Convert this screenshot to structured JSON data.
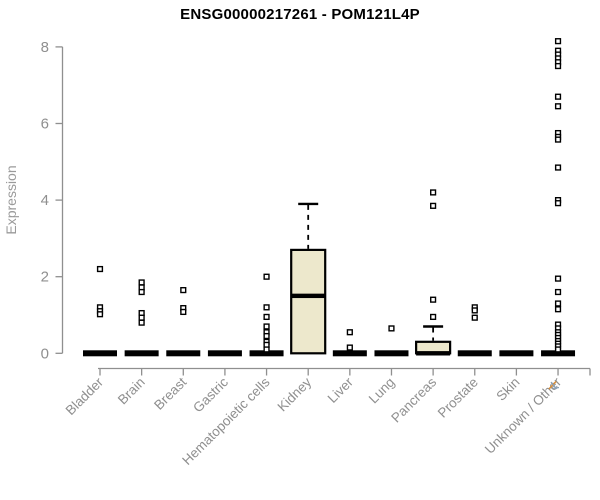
{
  "chart_data": {
    "type": "boxplot",
    "title": "ENSG00000217261 - POM121L4P",
    "ylabel": "Expression",
    "ylim": [
      0,
      8.4
    ],
    "yticks": [
      0,
      2,
      4,
      6,
      8
    ],
    "grid": false,
    "legend": null,
    "colors": {
      "box_fill": "#ede8cc",
      "box_stroke": "#000000",
      "axis": "#8f8f8f",
      "tick_label": "#8f8f8f",
      "axis_title": "#9a9a9a",
      "title": "#000000",
      "outlier_fill": "#ffffff"
    },
    "categories": [
      "Bladder",
      "Brain",
      "Breast",
      "Gastric",
      "Hematopoietic cells",
      "Kidney",
      "Liver",
      "Lung",
      "Pancreas",
      "Prostate",
      "Skin",
      "Unknown / Other"
    ],
    "series": [
      {
        "category": "Bladder",
        "q1": 0,
        "median": 0,
        "q3": 0,
        "whisker_low": 0,
        "whisker_high": 0,
        "outliers": [
          2.2,
          1.2,
          1.1,
          1.02
        ]
      },
      {
        "category": "Brain",
        "q1": 0,
        "median": 0,
        "q3": 0,
        "whisker_low": 0,
        "whisker_high": 0,
        "outliers": [
          1.85,
          1.72,
          1.6,
          1.05,
          0.93,
          0.8
        ]
      },
      {
        "category": "Breast",
        "q1": 0,
        "median": 0,
        "q3": 0,
        "whisker_low": 0,
        "whisker_high": 0,
        "outliers": [
          1.65,
          1.18,
          1.08
        ]
      },
      {
        "category": "Gastric",
        "q1": 0,
        "median": 0,
        "q3": 0,
        "whisker_low": 0,
        "whisker_high": 0,
        "outliers": []
      },
      {
        "category": "Hematopoietic cells",
        "q1": 0,
        "median": 0,
        "q3": 0,
        "whisker_low": 0,
        "whisker_high": 0,
        "outliers": [
          2.0,
          1.2,
          0.95,
          0.7,
          0.55,
          0.45,
          0.3,
          0.22,
          0.1
        ]
      },
      {
        "category": "Kidney",
        "q1": 0,
        "median": 1.5,
        "q3": 2.7,
        "whisker_low": 0,
        "whisker_high": 3.9,
        "outliers": []
      },
      {
        "category": "Liver",
        "q1": 0,
        "median": 0,
        "q3": 0,
        "whisker_low": 0,
        "whisker_high": 0,
        "outliers": [
          0.55,
          0.15
        ]
      },
      {
        "category": "Lung",
        "q1": 0,
        "median": 0,
        "q3": 0,
        "whisker_low": 0,
        "whisker_high": 0,
        "outliers": [
          0.65
        ]
      },
      {
        "category": "Pancreas",
        "q1": 0,
        "median": 0,
        "q3": 0.3,
        "whisker_low": 0,
        "whisker_high": 0.7,
        "outliers": [
          4.2,
          3.85,
          1.4,
          0.95
        ]
      },
      {
        "category": "Prostate",
        "q1": 0,
        "median": 0,
        "q3": 0,
        "whisker_low": 0,
        "whisker_high": 0,
        "outliers": [
          1.2,
          1.12,
          0.93
        ]
      },
      {
        "category": "Skin",
        "q1": 0,
        "median": 0,
        "q3": 0,
        "whisker_low": 0,
        "whisker_high": 0,
        "outliers": []
      },
      {
        "category": "Unknown / Other",
        "q1": 0,
        "median": 0,
        "q3": 0,
        "whisker_low": 0,
        "whisker_high": 0,
        "outliers": [
          8.15,
          7.9,
          7.8,
          7.7,
          7.6,
          7.5,
          6.7,
          6.45,
          5.75,
          5.65,
          5.58,
          4.85,
          4.0,
          3.92,
          1.95,
          1.6,
          1.3,
          1.15,
          0.75,
          0.65,
          0.55,
          0.48,
          0.4,
          0.32,
          0.25,
          0.18,
          0.1
        ]
      }
    ]
  },
  "cursor_artifact": {
    "colors": [
      "#d98f3a",
      "#8ba0b5"
    ]
  }
}
